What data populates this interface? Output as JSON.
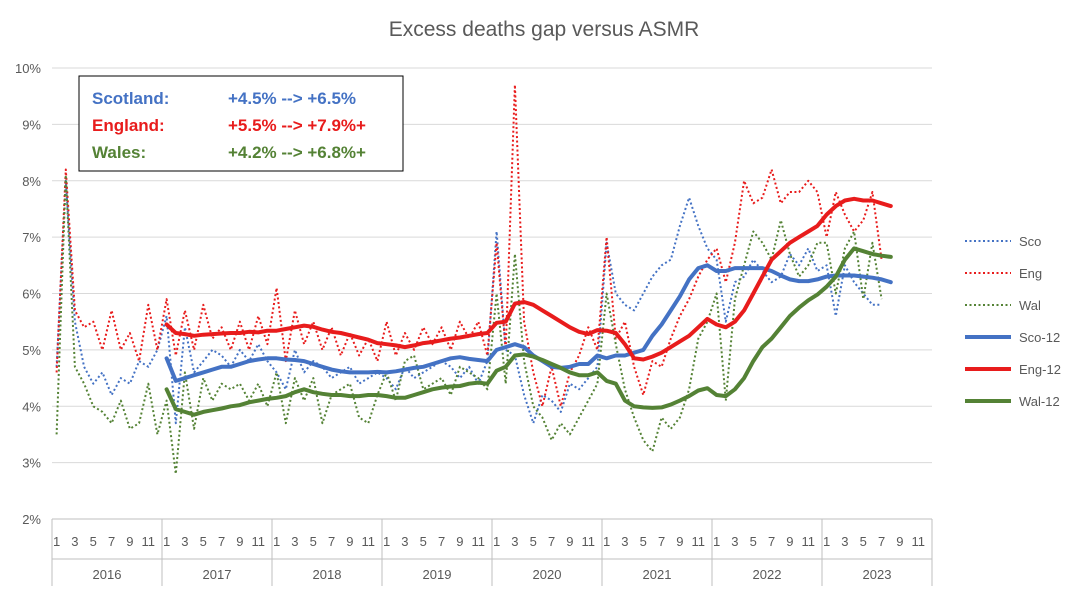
{
  "chart_data": {
    "type": "line",
    "title": "Excess deaths gap versus ASMR",
    "xlabel": "",
    "ylabel": "",
    "ylim": [
      0.02,
      0.1
    ],
    "yticks": [
      "2%",
      "3%",
      "4%",
      "5%",
      "6%",
      "7%",
      "8%",
      "9%",
      "10%"
    ],
    "grid": true,
    "month_ticks": [
      "1",
      "3",
      "5",
      "7",
      "9",
      "11",
      "1",
      "3",
      "5",
      "7",
      "9",
      "11",
      "1",
      "3",
      "5",
      "7",
      "9",
      "11",
      "1",
      "3",
      "5",
      "7",
      "9",
      "11",
      "1",
      "3",
      "5",
      "7",
      "9",
      "11",
      "1",
      "3",
      "5",
      "7",
      "9",
      "11",
      "1",
      "3",
      "5",
      "7",
      "9",
      "11",
      "1",
      "3",
      "5",
      "7",
      "9",
      "11"
    ],
    "years": [
      "2016",
      "2017",
      "2018",
      "2019",
      "2020",
      "2021",
      "2022",
      "2023"
    ],
    "legend_position": "right",
    "series": [
      {
        "name": "Sco",
        "color": "#4472C4",
        "style": "dotted",
        "values": [
          0.047,
          0.08,
          0.055,
          0.047,
          0.044,
          0.046,
          0.042,
          0.045,
          0.044,
          0.048,
          0.047,
          0.05,
          0.056,
          0.037,
          0.054,
          0.046,
          0.048,
          0.05,
          0.049,
          0.047,
          0.05,
          0.048,
          0.051,
          0.048,
          0.046,
          0.043,
          0.05,
          0.046,
          0.048,
          0.047,
          0.045,
          0.046,
          0.047,
          0.044,
          0.045,
          0.046,
          0.045,
          0.043,
          0.047,
          0.045,
          0.046,
          0.047,
          0.048,
          0.047,
          0.045,
          0.047,
          0.044,
          0.048,
          0.071,
          0.05,
          0.049,
          0.042,
          0.037,
          0.042,
          0.041,
          0.039,
          0.044,
          0.043,
          0.045,
          0.047,
          0.069,
          0.06,
          0.058,
          0.057,
          0.06,
          0.063,
          0.065,
          0.066,
          0.072,
          0.077,
          0.072,
          0.068,
          0.066,
          0.055,
          0.062,
          0.063,
          0.066,
          0.064,
          0.062,
          0.063,
          0.067,
          0.065,
          0.068,
          0.064,
          0.065,
          0.056,
          0.065,
          0.062,
          0.06,
          0.058,
          0.058
        ]
      },
      {
        "name": "Eng",
        "color": "#E81C1C",
        "style": "dotted",
        "values": [
          0.046,
          0.082,
          0.057,
          0.054,
          0.055,
          0.05,
          0.057,
          0.05,
          0.053,
          0.048,
          0.058,
          0.05,
          0.059,
          0.049,
          0.057,
          0.05,
          0.058,
          0.052,
          0.054,
          0.05,
          0.055,
          0.05,
          0.056,
          0.051,
          0.061,
          0.048,
          0.057,
          0.051,
          0.055,
          0.05,
          0.054,
          0.049,
          0.053,
          0.049,
          0.052,
          0.048,
          0.055,
          0.049,
          0.053,
          0.05,
          0.054,
          0.051,
          0.054,
          0.05,
          0.055,
          0.052,
          0.055,
          0.049,
          0.069,
          0.05,
          0.097,
          0.055,
          0.046,
          0.04,
          0.047,
          0.04,
          0.046,
          0.049,
          0.054,
          0.05,
          0.07,
          0.052,
          0.055,
          0.047,
          0.042,
          0.048,
          0.047,
          0.052,
          0.056,
          0.059,
          0.063,
          0.066,
          0.068,
          0.062,
          0.069,
          0.08,
          0.076,
          0.077,
          0.082,
          0.076,
          0.078,
          0.078,
          0.08,
          0.078,
          0.07,
          0.078,
          0.074,
          0.071,
          0.073,
          0.078,
          0.066
        ]
      },
      {
        "name": "Wal",
        "color": "#548235",
        "style": "dotted",
        "values": [
          0.035,
          0.081,
          0.047,
          0.044,
          0.04,
          0.039,
          0.037,
          0.041,
          0.036,
          0.037,
          0.044,
          0.035,
          0.041,
          0.028,
          0.046,
          0.036,
          0.045,
          0.041,
          0.044,
          0.043,
          0.044,
          0.041,
          0.044,
          0.04,
          0.046,
          0.037,
          0.045,
          0.041,
          0.045,
          0.037,
          0.042,
          0.043,
          0.044,
          0.038,
          0.037,
          0.042,
          0.046,
          0.041,
          0.048,
          0.049,
          0.043,
          0.044,
          0.045,
          0.042,
          0.047,
          0.046,
          0.045,
          0.043,
          0.06,
          0.044,
          0.067,
          0.048,
          0.04,
          0.038,
          0.034,
          0.037,
          0.035,
          0.038,
          0.041,
          0.044,
          0.06,
          0.051,
          0.043,
          0.038,
          0.034,
          0.032,
          0.038,
          0.036,
          0.038,
          0.043,
          0.052,
          0.055,
          0.06,
          0.041,
          0.059,
          0.065,
          0.071,
          0.069,
          0.066,
          0.073,
          0.067,
          0.063,
          0.065,
          0.069,
          0.069,
          0.06,
          0.068,
          0.071,
          0.059,
          0.069,
          0.059
        ]
      },
      {
        "name": "Sco-12",
        "color": "#4472C4",
        "style": "solid",
        "start_index": 12,
        "values": [
          0.0485,
          0.0445,
          0.045,
          0.0455,
          0.046,
          0.0465,
          0.047,
          0.047,
          0.0475,
          0.048,
          0.0483,
          0.0485,
          0.0485,
          0.0483,
          0.0482,
          0.048,
          0.0475,
          0.047,
          0.0465,
          0.0462,
          0.046,
          0.046,
          0.046,
          0.0461,
          0.046,
          0.0462,
          0.0465,
          0.0468,
          0.047,
          0.0475,
          0.048,
          0.0485,
          0.0487,
          0.0484,
          0.0482,
          0.048,
          0.05,
          0.0505,
          0.051,
          0.0505,
          0.049,
          0.048,
          0.047,
          0.0468,
          0.047,
          0.0475,
          0.0475,
          0.049,
          0.0485,
          0.049,
          0.049,
          0.0495,
          0.05,
          0.0525,
          0.0545,
          0.057,
          0.0595,
          0.0625,
          0.0645,
          0.065,
          0.064,
          0.064,
          0.0645,
          0.0645,
          0.0645,
          0.0645,
          0.064,
          0.0632,
          0.0625,
          0.0622,
          0.0622,
          0.0625,
          0.063,
          0.0632,
          0.0632,
          0.0632,
          0.063,
          0.0628,
          0.0625,
          0.062
        ]
      },
      {
        "name": "Eng-12",
        "color": "#E81C1C",
        "style": "solid",
        "start_index": 12,
        "values": [
          0.0545,
          0.053,
          0.0528,
          0.0525,
          0.0527,
          0.0528,
          0.0529,
          0.053,
          0.053,
          0.0532,
          0.0531,
          0.0534,
          0.0534,
          0.0537,
          0.054,
          0.0543,
          0.0541,
          0.0536,
          0.0532,
          0.053,
          0.0526,
          0.0522,
          0.0518,
          0.0512,
          0.051,
          0.0508,
          0.0505,
          0.0508,
          0.0512,
          0.0514,
          0.0517,
          0.052,
          0.0522,
          0.0525,
          0.0528,
          0.053,
          0.0548,
          0.055,
          0.0582,
          0.0585,
          0.058,
          0.057,
          0.056,
          0.055,
          0.054,
          0.0532,
          0.0528,
          0.0535,
          0.0534,
          0.053,
          0.051,
          0.0485,
          0.0483,
          0.0488,
          0.0495,
          0.0505,
          0.0515,
          0.0525,
          0.054,
          0.0555,
          0.0545,
          0.054,
          0.055,
          0.057,
          0.06,
          0.063,
          0.066,
          0.0675,
          0.069,
          0.07,
          0.071,
          0.072,
          0.074,
          0.0755,
          0.0765,
          0.0768,
          0.0765,
          0.0765,
          0.076,
          0.0755
        ]
      },
      {
        "name": "Wal-12",
        "color": "#548235",
        "style": "solid",
        "start_index": 12,
        "values": [
          0.043,
          0.0395,
          0.039,
          0.0385,
          0.039,
          0.0393,
          0.0396,
          0.04,
          0.0402,
          0.0407,
          0.041,
          0.0413,
          0.0415,
          0.0418,
          0.0425,
          0.043,
          0.0425,
          0.0422,
          0.042,
          0.042,
          0.0418,
          0.0418,
          0.042,
          0.042,
          0.0418,
          0.0415,
          0.0415,
          0.042,
          0.0425,
          0.043,
          0.0433,
          0.0435,
          0.0436,
          0.044,
          0.0442,
          0.044,
          0.0463,
          0.047,
          0.049,
          0.0492,
          0.0488,
          0.0482,
          0.0475,
          0.0468,
          0.046,
          0.0455,
          0.0455,
          0.046,
          0.0445,
          0.044,
          0.041,
          0.04,
          0.0398,
          0.0397,
          0.0398,
          0.0403,
          0.041,
          0.0418,
          0.0428,
          0.0432,
          0.042,
          0.0418,
          0.043,
          0.045,
          0.048,
          0.0505,
          0.052,
          0.054,
          0.056,
          0.0575,
          0.0588,
          0.0598,
          0.0612,
          0.063,
          0.066,
          0.068,
          0.0675,
          0.067,
          0.0667,
          0.0665
        ]
      }
    ],
    "annotation": {
      "rows": [
        {
          "label": "Scotland:",
          "value": "+4.5% --> +6.5%",
          "color": "#4472C4"
        },
        {
          "label": "England:",
          "value": "+5.5% --> +7.9%+",
          "color": "#E81C1C"
        },
        {
          "label": "Wales:",
          "value": "+4.2% --> +6.8%+",
          "color": "#548235"
        }
      ]
    }
  }
}
